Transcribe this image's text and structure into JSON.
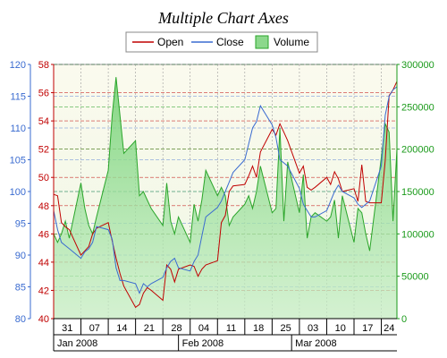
{
  "chart_data": {
    "type": "line",
    "title": "Multiple Chart Axes",
    "legend": {
      "placement": "top-center",
      "entries": [
        "Open",
        "Close",
        "Volume"
      ]
    },
    "colors": {
      "open": "#c00000",
      "close": "#3a6bd0",
      "volume_fill": "#8cd88c",
      "volume_line": "#2aa52a",
      "axis_close": "#3a6bd0",
      "axis_open": "#c00000",
      "axis_volume": "#1a9a1a",
      "plot_bg": "#fbfaee"
    },
    "axes": {
      "close_axis": {
        "side": "left-outer",
        "min": 80,
        "max": 120,
        "ticks": [
          "80",
          "85",
          "90",
          "95",
          "100",
          "105",
          "110",
          "115",
          "120"
        ]
      },
      "open_axis": {
        "side": "left-inner",
        "min": 40,
        "max": 58,
        "ticks": [
          "40",
          "42",
          "44",
          "46",
          "48",
          "50",
          "52",
          "54",
          "56",
          "58"
        ]
      },
      "volume_axis": {
        "side": "right",
        "min": 0,
        "max": 300000,
        "ticks": [
          "0",
          "50000",
          "100000",
          "150000",
          "200000",
          "250000",
          "300000"
        ]
      }
    },
    "x_range": [
      "2007-12-31",
      "2008-03-28"
    ],
    "x_tick_labels": [
      "31",
      "07",
      "14",
      "21",
      "28",
      "04",
      "11",
      "18",
      "25",
      "03",
      "10",
      "17",
      "24"
    ],
    "months": [
      "Jan 2008",
      "Feb 2008",
      "Mar 2008"
    ],
    "grid": true,
    "series": [
      {
        "name": "Open",
        "axis": "open_axis",
        "x": [
          "2007-12-31",
          "2008-01-01",
          "2008-01-02",
          "2008-01-03",
          "2008-01-04",
          "2008-01-07",
          "2008-01-08",
          "2008-01-09",
          "2008-01-10",
          "2008-01-11",
          "2008-01-14",
          "2008-01-15",
          "2008-01-16",
          "2008-01-17",
          "2008-01-18",
          "2008-01-21",
          "2008-01-22",
          "2008-01-23",
          "2008-01-24",
          "2008-01-25",
          "2008-01-28",
          "2008-01-29",
          "2008-01-30",
          "2008-01-31",
          "2008-02-01",
          "2008-02-04",
          "2008-02-05",
          "2008-02-06",
          "2008-02-07",
          "2008-02-08",
          "2008-02-11",
          "2008-02-12",
          "2008-02-13",
          "2008-02-14",
          "2008-02-15",
          "2008-02-18",
          "2008-02-19",
          "2008-02-20",
          "2008-02-21",
          "2008-02-22",
          "2008-02-25",
          "2008-02-26",
          "2008-02-27",
          "2008-02-28",
          "2008-02-29",
          "2008-03-03",
          "2008-03-04",
          "2008-03-05",
          "2008-03-06",
          "2008-03-07",
          "2008-03-10",
          "2008-03-11",
          "2008-03-12",
          "2008-03-13",
          "2008-03-14",
          "2008-03-17",
          "2008-03-18",
          "2008-03-19",
          "2008-03-20",
          "2008-03-21",
          "2008-03-24",
          "2008-03-25",
          "2008-03-26",
          "2008-03-27",
          "2008-03-28"
        ],
        "values": [
          48.8,
          48.7,
          46.8,
          46.5,
          46.3,
          44.5,
          44.8,
          45.1,
          46.0,
          46.4,
          46.8,
          45.5,
          44.3,
          43.2,
          42.3,
          40.8,
          41.0,
          41.8,
          42.2,
          42.0,
          41.3,
          43.8,
          43.5,
          42.6,
          43.5,
          43.8,
          43.7,
          43.0,
          43.5,
          43.8,
          44.1,
          46.8,
          47.3,
          49.0,
          49.4,
          49.5,
          50.1,
          50.8,
          50.0,
          51.8,
          53.4,
          53.0,
          53.8,
          53.2,
          52.6,
          50.3,
          50.8,
          49.3,
          49.1,
          49.3,
          50.0,
          49.5,
          50.4,
          49.9,
          49.0,
          49.2,
          48.3,
          50.9,
          48.3,
          48.2,
          48.2,
          51.2,
          55.8,
          56.2,
          56.8
        ]
      },
      {
        "name": "Close",
        "axis": "close_axis",
        "x": [
          "2007-12-31",
          "2008-01-01",
          "2008-01-02",
          "2008-01-03",
          "2008-01-04",
          "2008-01-07",
          "2008-01-08",
          "2008-01-09",
          "2008-01-10",
          "2008-01-11",
          "2008-01-14",
          "2008-01-15",
          "2008-01-16",
          "2008-01-17",
          "2008-01-18",
          "2008-01-21",
          "2008-01-22",
          "2008-01-23",
          "2008-01-24",
          "2008-01-25",
          "2008-01-28",
          "2008-01-29",
          "2008-01-30",
          "2008-01-31",
          "2008-02-01",
          "2008-02-04",
          "2008-02-05",
          "2008-02-06",
          "2008-02-07",
          "2008-02-08",
          "2008-02-11",
          "2008-02-12",
          "2008-02-13",
          "2008-02-14",
          "2008-02-15",
          "2008-02-18",
          "2008-02-19",
          "2008-02-20",
          "2008-02-21",
          "2008-02-22",
          "2008-02-25",
          "2008-02-26",
          "2008-02-27",
          "2008-02-28",
          "2008-02-29",
          "2008-03-03",
          "2008-03-04",
          "2008-03-05",
          "2008-03-06",
          "2008-03-07",
          "2008-03-10",
          "2008-03-11",
          "2008-03-12",
          "2008-03-13",
          "2008-03-14",
          "2008-03-17",
          "2008-03-18",
          "2008-03-19",
          "2008-03-20",
          "2008-03-21",
          "2008-03-24",
          "2008-03-25",
          "2008-03-26",
          "2008-03-27",
          "2008-03-28"
        ],
        "values": [
          97.0,
          94.0,
          92.0,
          91.5,
          91.0,
          89.5,
          90.5,
          91.0,
          92.0,
          94.5,
          94.0,
          92.5,
          88.0,
          86.0,
          86.0,
          85.5,
          84.0,
          85.5,
          85.0,
          85.5,
          86.5,
          88.0,
          89.0,
          89.5,
          88.0,
          87.5,
          89.0,
          90.0,
          93.0,
          96.0,
          97.5,
          98.5,
          100.0,
          101.5,
          103.0,
          105.0,
          107.5,
          110.0,
          111.0,
          113.5,
          110.5,
          108.5,
          105.0,
          104.5,
          104.0,
          100.5,
          98.0,
          97.0,
          96.0,
          96.0,
          97.0,
          98.5,
          100.0,
          101.0,
          100.0,
          99.0,
          98.0,
          97.5,
          98.0,
          98.5,
          104.0,
          112.0,
          115.0,
          116.0,
          116.5
        ]
      },
      {
        "name": "Volume",
        "axis": "volume_axis",
        "type": "area",
        "x": [
          "2007-12-31",
          "2008-01-01",
          "2008-01-02",
          "2008-01-03",
          "2008-01-04",
          "2008-01-07",
          "2008-01-08",
          "2008-01-09",
          "2008-01-10",
          "2008-01-11",
          "2008-01-14",
          "2008-01-15",
          "2008-01-16",
          "2008-01-17",
          "2008-01-18",
          "2008-01-21",
          "2008-01-22",
          "2008-01-23",
          "2008-01-24",
          "2008-01-25",
          "2008-01-28",
          "2008-01-29",
          "2008-01-30",
          "2008-01-31",
          "2008-02-01",
          "2008-02-04",
          "2008-02-05",
          "2008-02-06",
          "2008-02-07",
          "2008-02-08",
          "2008-02-11",
          "2008-02-12",
          "2008-02-13",
          "2008-02-14",
          "2008-02-15",
          "2008-02-18",
          "2008-02-19",
          "2008-02-20",
          "2008-02-21",
          "2008-02-22",
          "2008-02-25",
          "2008-02-26",
          "2008-02-27",
          "2008-02-28",
          "2008-02-29",
          "2008-03-03",
          "2008-03-04",
          "2008-03-05",
          "2008-03-06",
          "2008-03-07",
          "2008-03-10",
          "2008-03-11",
          "2008-03-12",
          "2008-03-13",
          "2008-03-14",
          "2008-03-17",
          "2008-03-18",
          "2008-03-19",
          "2008-03-20",
          "2008-03-21",
          "2008-03-24",
          "2008-03-25",
          "2008-03-26",
          "2008-03-27",
          "2008-03-28"
        ],
        "values": [
          100000,
          90000,
          100000,
          115000,
          95000,
          160000,
          130000,
          110000,
          100000,
          120000,
          175000,
          240000,
          285000,
          240000,
          195000,
          210000,
          145000,
          150000,
          140000,
          130000,
          110000,
          160000,
          115000,
          100000,
          120000,
          90000,
          135000,
          115000,
          140000,
          175000,
          145000,
          155000,
          145000,
          110000,
          120000,
          135000,
          145000,
          130000,
          150000,
          180000,
          125000,
          130000,
          225000,
          115000,
          185000,
          125000,
          170000,
          95000,
          120000,
          125000,
          115000,
          120000,
          140000,
          95000,
          145000,
          90000,
          130000,
          125000,
          100000,
          80000,
          190000,
          230000,
          220000,
          115000,
          200000
        ]
      }
    ]
  }
}
